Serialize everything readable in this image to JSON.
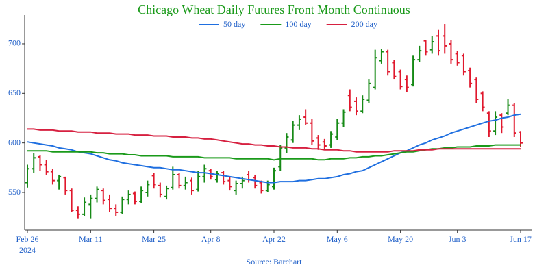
{
  "chart_data": {
    "type": "ohlc",
    "title": "Chicago Wheat Daily Futures Front Month Continuous",
    "source": "Source: Barchart",
    "categories": [
      "2024-02-26",
      "2024-02-27",
      "2024-02-28",
      "2024-02-29",
      "2024-03-01",
      "2024-03-04",
      "2024-03-05",
      "2024-03-06",
      "2024-03-07",
      "2024-03-08",
      "2024-03-11",
      "2024-03-12",
      "2024-03-13",
      "2024-03-14",
      "2024-03-15",
      "2024-03-18",
      "2024-03-19",
      "2024-03-20",
      "2024-03-21",
      "2024-03-22",
      "2024-03-25",
      "2024-03-26",
      "2024-03-27",
      "2024-03-28",
      "2024-04-01",
      "2024-04-02",
      "2024-04-03",
      "2024-04-04",
      "2024-04-05",
      "2024-04-08",
      "2024-04-09",
      "2024-04-10",
      "2024-04-11",
      "2024-04-12",
      "2024-04-15",
      "2024-04-16",
      "2024-04-17",
      "2024-04-18",
      "2024-04-19",
      "2024-04-22",
      "2024-04-23",
      "2024-04-24",
      "2024-04-25",
      "2024-04-26",
      "2024-04-29",
      "2024-04-30",
      "2024-05-01",
      "2024-05-02",
      "2024-05-03",
      "2024-05-06",
      "2024-05-07",
      "2024-05-08",
      "2024-05-09",
      "2024-05-10",
      "2024-05-13",
      "2024-05-14",
      "2024-05-15",
      "2024-05-16",
      "2024-05-17",
      "2024-05-20",
      "2024-05-21",
      "2024-05-22",
      "2024-05-23",
      "2024-05-24",
      "2024-05-28",
      "2024-05-29",
      "2024-05-30",
      "2024-05-31",
      "2024-06-03",
      "2024-06-04",
      "2024-06-05",
      "2024-06-06",
      "2024-06-07",
      "2024-06-10",
      "2024-06-11",
      "2024-06-12",
      "2024-06-13",
      "2024-06-14",
      "2024-06-17"
    ],
    "open": [
      560,
      574,
      586,
      578,
      571,
      562,
      565,
      552,
      532,
      528,
      538,
      544,
      552,
      543,
      534,
      530,
      543,
      549,
      541,
      550,
      567,
      557,
      546,
      555,
      568,
      557,
      562,
      553,
      566,
      572,
      563,
      570,
      562,
      552,
      559,
      568,
      565,
      560,
      552,
      556,
      576,
      595,
      603,
      618,
      626,
      620,
      605,
      601,
      598,
      606,
      620,
      648,
      642,
      632,
      643,
      656,
      683,
      692,
      681,
      672,
      664,
      659,
      684,
      703,
      694,
      708,
      708,
      700,
      690,
      688,
      673,
      664,
      650,
      630,
      612,
      628,
      630,
      638,
      611
    ],
    "high": [
      578,
      590,
      588,
      583,
      574,
      568,
      566,
      554,
      536,
      545,
      548,
      556,
      554,
      548,
      538,
      546,
      552,
      551,
      556,
      562,
      570,
      560,
      557,
      576,
      570,
      566,
      565,
      572,
      578,
      574,
      572,
      572,
      566,
      562,
      566,
      572,
      568,
      562,
      562,
      575,
      598,
      610,
      622,
      628,
      634,
      624,
      608,
      604,
      612,
      624,
      634,
      654,
      646,
      648,
      664,
      694,
      695,
      694,
      684,
      674,
      668,
      688,
      698,
      704,
      708,
      714,
      720,
      704,
      693,
      690,
      676,
      666,
      652,
      632,
      632,
      630,
      644,
      640,
      612
    ],
    "low": [
      555,
      570,
      572,
      568,
      558,
      553,
      548,
      530,
      524,
      526,
      524,
      540,
      538,
      530,
      526,
      528,
      538,
      538,
      539,
      546,
      554,
      545,
      543,
      553,
      554,
      553,
      548,
      551,
      560,
      563,
      560,
      558,
      552,
      548,
      554,
      560,
      554,
      549,
      550,
      553,
      572,
      590,
      600,
      613,
      618,
      598,
      593,
      594,
      595,
      603,
      616,
      632,
      628,
      630,
      640,
      654,
      680,
      668,
      664,
      654,
      651,
      657,
      682,
      688,
      690,
      688,
      690,
      680,
      678,
      668,
      656,
      640,
      632,
      606,
      608,
      610,
      628,
      606,
      596
    ],
    "close": [
      574,
      585,
      578,
      571,
      562,
      566,
      552,
      532,
      528,
      540,
      544,
      553,
      542,
      534,
      530,
      543,
      548,
      541,
      552,
      558,
      558,
      548,
      554,
      568,
      557,
      560,
      552,
      566,
      574,
      566,
      569,
      561,
      556,
      559,
      562,
      563,
      557,
      552,
      558,
      572,
      595,
      606,
      618,
      624,
      620,
      602,
      598,
      597,
      609,
      620,
      631,
      636,
      632,
      644,
      660,
      686,
      692,
      672,
      667,
      657,
      656,
      684,
      693,
      692,
      702,
      693,
      698,
      684,
      681,
      672,
      660,
      644,
      636,
      612,
      626,
      616,
      638,
      610,
      600
    ],
    "up_color": "#168a16",
    "down_color": "#e0182d",
    "series": [
      {
        "name": "50 day",
        "color": "#1f6fe0",
        "values": [
          601,
          600,
          599,
          598,
          597,
          595,
          594,
          593,
          591,
          590,
          589,
          587,
          585,
          583,
          582,
          580,
          579,
          578,
          577,
          576,
          575,
          575,
          574,
          573,
          573,
          572,
          571,
          570,
          570,
          569,
          568,
          567,
          566,
          565,
          564,
          563,
          562,
          561,
          560,
          560,
          561,
          561,
          561,
          562,
          562,
          563,
          564,
          564,
          565,
          566,
          568,
          569,
          571,
          572,
          575,
          578,
          581,
          584,
          587,
          590,
          592,
          595,
          598,
          600,
          603,
          605,
          607,
          610,
          612,
          614,
          616,
          618,
          620,
          622,
          623,
          625,
          626,
          628,
          629
        ]
      },
      {
        "name": "100 day",
        "color": "#1a9a1a",
        "values": [
          592,
          592,
          592,
          592,
          591,
          591,
          591,
          591,
          591,
          591,
          591,
          590,
          590,
          589,
          589,
          589,
          588,
          588,
          587,
          587,
          587,
          587,
          587,
          586,
          586,
          586,
          586,
          586,
          585,
          585,
          585,
          585,
          585,
          584,
          584,
          584,
          584,
          584,
          584,
          583,
          584,
          584,
          584,
          584,
          584,
          584,
          583,
          583,
          584,
          584,
          584,
          585,
          585,
          586,
          586,
          587,
          587,
          588,
          589,
          590,
          591,
          591,
          592,
          593,
          594,
          594,
          595,
          595,
          596,
          596,
          596,
          597,
          597,
          597,
          598,
          598,
          598,
          598,
          598
        ]
      },
      {
        "name": "200 day",
        "color": "#d62040",
        "values": [
          614,
          614,
          613,
          613,
          613,
          612,
          612,
          612,
          611,
          611,
          611,
          610,
          610,
          610,
          609,
          609,
          609,
          608,
          608,
          608,
          607,
          607,
          607,
          606,
          606,
          606,
          605,
          605,
          604,
          604,
          603,
          602,
          601,
          600,
          599,
          599,
          598,
          598,
          597,
          597,
          596,
          596,
          595,
          595,
          595,
          594,
          594,
          593,
          593,
          593,
          592,
          592,
          591,
          591,
          591,
          591,
          591,
          591,
          592,
          592,
          592,
          592,
          593,
          593,
          593,
          594,
          594,
          594,
          594,
          594,
          594,
          594,
          594,
          594,
          594,
          594,
          594,
          594,
          594
        ]
      }
    ],
    "ylim": [
      512,
      729
    ],
    "yticks": [
      550,
      600,
      650,
      700
    ],
    "xticks": [
      {
        "value": "2024-02-26",
        "label": "Feb 26\n2024"
      },
      {
        "value": "2024-03-11",
        "label": "Mar 11"
      },
      {
        "value": "2024-03-25",
        "label": "Mar 25"
      },
      {
        "value": "2024-04-08",
        "label": "Apr 8"
      },
      {
        "value": "2024-04-22",
        "label": "Apr 22"
      },
      {
        "value": "2024-05-06",
        "label": "May 6"
      },
      {
        "value": "2024-05-20",
        "label": "May 20"
      },
      {
        "value": "2024-06-03",
        "label": "Jun 3"
      },
      {
        "value": "2024-06-17",
        "label": "Jun 17"
      }
    ],
    "legend": "top",
    "title_color": "#1a9a1a",
    "label_color": "#1f5fc8"
  }
}
